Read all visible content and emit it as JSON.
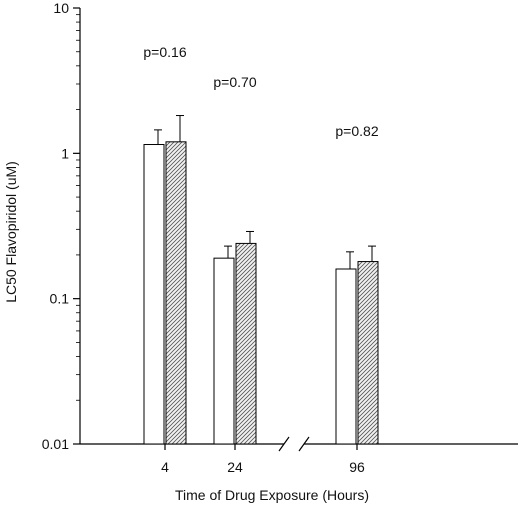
{
  "chart_data": {
    "type": "bar",
    "xlabel": "Time of Drug Exposure (Hours)",
    "ylabel": "LC50 Flavopiridol (uM)",
    "yscale": "log",
    "ylim": [
      0.01,
      10
    ],
    "yticks": [
      "0.01",
      "0.1",
      "1",
      "10"
    ],
    "ytick_values": [
      0.01,
      0.1,
      1,
      10
    ],
    "grid": false,
    "legend": "none",
    "axis_break": true,
    "categories": [
      "4",
      "24",
      "96"
    ],
    "series": [
      {
        "values": [
          1.15,
          0.19,
          0.16
        ],
        "error": [
          0.3,
          0.04,
          0.05
        ],
        "fill": "#ffffff"
      },
      {
        "values": [
          1.2,
          0.24,
          0.18
        ],
        "error": [
          0.62,
          0.05,
          0.05
        ],
        "fill": "hatched"
      }
    ],
    "annotations": [
      "p=0.16",
      "p=0.70",
      "p=0.82"
    ]
  }
}
